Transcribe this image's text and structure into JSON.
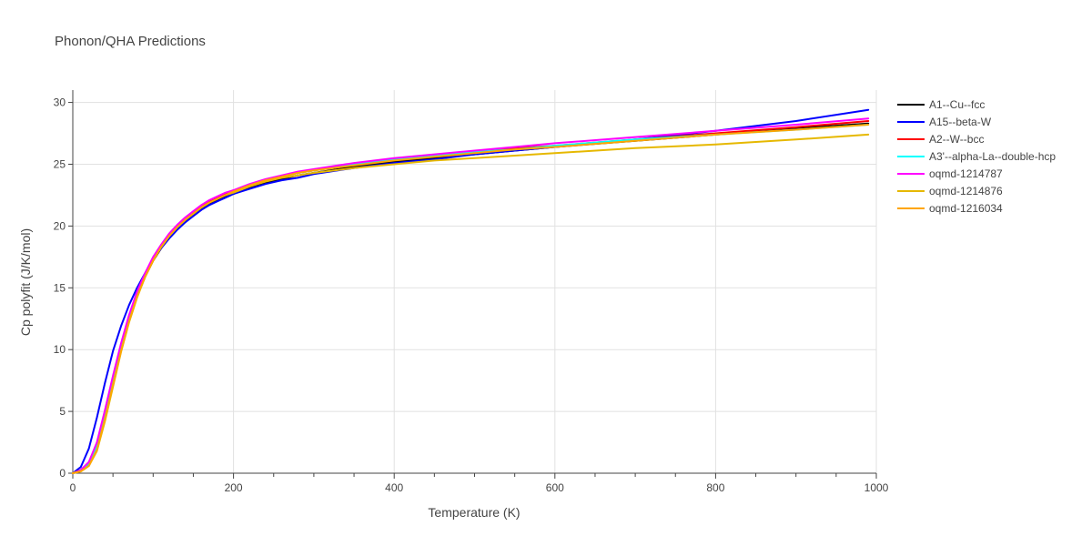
{
  "chart_data": {
    "type": "line",
    "title": "Phonon/QHA Predictions",
    "xlabel": "Temperature (K)",
    "ylabel": "Cp polyfit (J/K/mol)",
    "xlim": [
      0,
      1000
    ],
    "ylim": [
      0,
      31
    ],
    "xticks": [
      0,
      200,
      400,
      600,
      800,
      1000
    ],
    "yticks": [
      0,
      5,
      10,
      15,
      20,
      25,
      30
    ],
    "grid": true,
    "legend_position": "top-right",
    "series": [
      {
        "name": "A1--Cu--fcc",
        "color": "#000000",
        "x": [
          0,
          10,
          20,
          30,
          40,
          50,
          60,
          70,
          80,
          90,
          100,
          110,
          120,
          130,
          140,
          150,
          160,
          170,
          180,
          190,
          200,
          220,
          240,
          260,
          280,
          300,
          350,
          400,
          450,
          500,
          550,
          600,
          700,
          800,
          900,
          990
        ],
        "y": [
          0,
          0.2,
          0.7,
          2.0,
          4.5,
          7.3,
          10.0,
          12.3,
          14.3,
          15.9,
          17.2,
          18.2,
          19.1,
          19.8,
          20.4,
          20.9,
          21.4,
          21.8,
          22.1,
          22.4,
          22.6,
          23.1,
          23.5,
          23.8,
          24.1,
          24.3,
          24.8,
          25.2,
          25.5,
          25.8,
          26.1,
          26.4,
          26.9,
          27.4,
          27.9,
          28.3
        ]
      },
      {
        "name": "A15--beta-W",
        "color": "#0000ff",
        "x": [
          0,
          10,
          20,
          30,
          40,
          50,
          60,
          70,
          80,
          90,
          100,
          110,
          120,
          130,
          140,
          150,
          160,
          170,
          180,
          190,
          200,
          220,
          240,
          260,
          280,
          300,
          350,
          400,
          450,
          500,
          550,
          600,
          700,
          800,
          900,
          990
        ],
        "y": [
          0,
          0.5,
          2.0,
          4.5,
          7.3,
          9.9,
          11.9,
          13.6,
          15.0,
          16.2,
          17.3,
          18.2,
          19.0,
          19.7,
          20.3,
          20.8,
          21.3,
          21.7,
          22.0,
          22.3,
          22.6,
          23.0,
          23.4,
          23.7,
          23.9,
          24.2,
          24.7,
          25.1,
          25.4,
          25.8,
          26.1,
          26.4,
          27.0,
          27.7,
          28.5,
          29.4
        ]
      },
      {
        "name": "A2--W--bcc",
        "color": "#ff0000",
        "x": [
          0,
          10,
          20,
          30,
          40,
          50,
          60,
          70,
          80,
          90,
          100,
          110,
          120,
          130,
          140,
          150,
          160,
          170,
          180,
          190,
          200,
          220,
          240,
          260,
          280,
          300,
          350,
          400,
          450,
          500,
          550,
          600,
          700,
          800,
          900,
          990
        ],
        "y": [
          0,
          0.25,
          0.9,
          2.4,
          5.0,
          7.8,
          10.4,
          12.7,
          14.6,
          16.1,
          17.4,
          18.4,
          19.3,
          20.0,
          20.6,
          21.1,
          21.6,
          22.0,
          22.3,
          22.6,
          22.8,
          23.3,
          23.7,
          24.0,
          24.3,
          24.5,
          25.0,
          25.4,
          25.7,
          26.0,
          26.3,
          26.5,
          27.0,
          27.5,
          28.0,
          28.5
        ]
      },
      {
        "name": "A3'--alpha-La--double-hcp",
        "color": "#00ffff",
        "x": [
          0,
          10,
          20,
          30,
          40,
          50,
          60,
          70,
          80,
          90,
          100,
          110,
          120,
          130,
          140,
          150,
          160,
          170,
          180,
          190,
          200,
          220,
          240,
          260,
          280,
          300,
          350,
          400,
          450,
          500,
          550,
          600,
          700,
          800,
          900,
          990
        ],
        "y": [
          0,
          0.2,
          0.8,
          2.2,
          4.8,
          7.6,
          10.2,
          12.5,
          14.4,
          16.0,
          17.3,
          18.3,
          19.2,
          19.9,
          20.5,
          21.0,
          21.5,
          21.9,
          22.2,
          22.5,
          22.8,
          23.3,
          23.7,
          24.0,
          24.3,
          24.5,
          25.0,
          25.4,
          25.7,
          26.0,
          26.2,
          26.5,
          27.0,
          27.4,
          27.8,
          28.2
        ]
      },
      {
        "name": "oqmd-1214787",
        "color": "#ff00ff",
        "x": [
          0,
          10,
          20,
          30,
          40,
          50,
          60,
          70,
          80,
          90,
          100,
          110,
          120,
          130,
          140,
          150,
          160,
          170,
          180,
          190,
          200,
          220,
          240,
          260,
          280,
          300,
          350,
          400,
          450,
          500,
          550,
          600,
          700,
          800,
          900,
          990
        ],
        "y": [
          0,
          0.25,
          0.9,
          2.5,
          5.1,
          7.9,
          10.5,
          12.8,
          14.7,
          16.2,
          17.5,
          18.5,
          19.4,
          20.1,
          20.7,
          21.2,
          21.7,
          22.1,
          22.4,
          22.7,
          22.9,
          23.4,
          23.8,
          24.1,
          24.4,
          24.6,
          25.1,
          25.5,
          25.8,
          26.1,
          26.4,
          26.7,
          27.2,
          27.7,
          28.2,
          28.7
        ]
      },
      {
        "name": "oqmd-1214876",
        "color": "#e6b800",
        "x": [
          0,
          10,
          20,
          30,
          40,
          50,
          60,
          70,
          80,
          90,
          100,
          110,
          120,
          130,
          140,
          150,
          160,
          170,
          180,
          190,
          200,
          220,
          240,
          260,
          280,
          300,
          350,
          400,
          450,
          500,
          550,
          600,
          700,
          800,
          900,
          990
        ],
        "y": [
          0,
          0.15,
          0.6,
          1.8,
          4.2,
          7.0,
          9.8,
          12.2,
          14.2,
          15.9,
          17.2,
          18.3,
          19.2,
          19.9,
          20.5,
          21.0,
          21.5,
          21.9,
          22.2,
          22.5,
          22.7,
          23.2,
          23.6,
          23.9,
          24.1,
          24.3,
          24.7,
          25.0,
          25.3,
          25.5,
          25.7,
          25.9,
          26.3,
          26.6,
          27.0,
          27.4
        ]
      },
      {
        "name": "oqmd-1216034",
        "color": "#ffa500",
        "x": [
          0,
          10,
          20,
          30,
          40,
          50,
          60,
          70,
          80,
          90,
          100,
          110,
          120,
          130,
          140,
          150,
          160,
          170,
          180,
          190,
          200,
          220,
          240,
          260,
          280,
          300,
          350,
          400,
          450,
          500,
          550,
          600,
          700,
          800,
          900,
          990
        ],
        "y": [
          0,
          0.15,
          0.6,
          1.9,
          4.4,
          7.2,
          9.9,
          12.3,
          14.3,
          15.9,
          17.2,
          18.3,
          19.2,
          19.9,
          20.5,
          21.0,
          21.5,
          21.9,
          22.2,
          22.5,
          22.8,
          23.3,
          23.7,
          24.0,
          24.3,
          24.5,
          24.9,
          25.3,
          25.6,
          25.9,
          26.2,
          26.4,
          26.9,
          27.4,
          27.8,
          28.2
        ]
      }
    ]
  }
}
